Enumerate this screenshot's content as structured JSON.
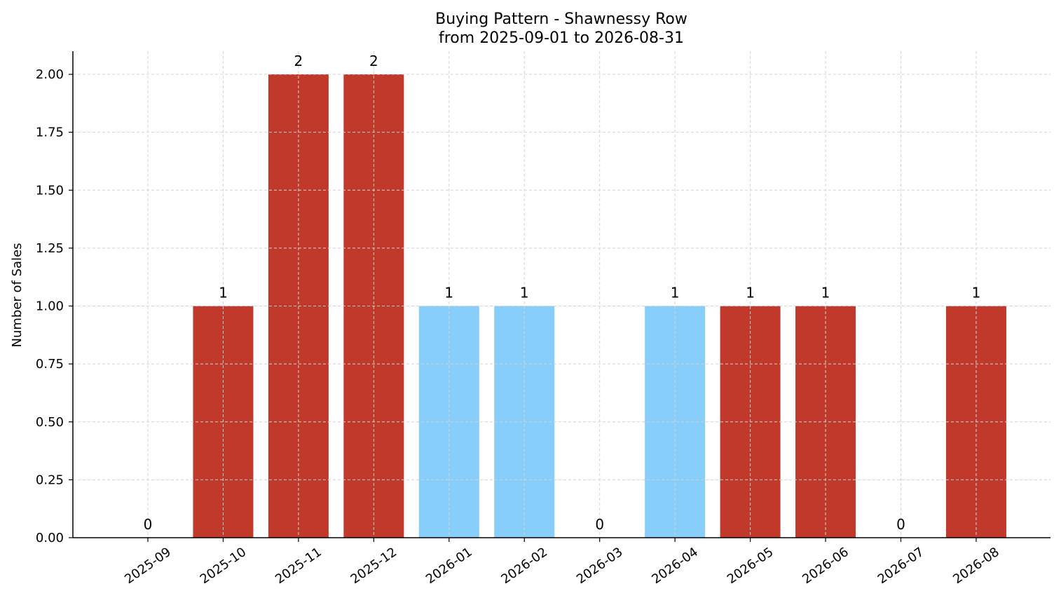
{
  "chart_data": {
    "type": "bar",
    "title": "Buying Pattern - Shawnessy Row",
    "subtitle": "from 2025-09-01 to 2026-08-31",
    "xlabel": "",
    "ylabel": "Number of Sales",
    "ylim": [
      0,
      2.1
    ],
    "yticks": [
      "0.00",
      "0.25",
      "0.50",
      "0.75",
      "1.00",
      "1.25",
      "1.50",
      "1.75",
      "2.00"
    ],
    "grid": true,
    "categories": [
      "2025-09",
      "2025-10",
      "2025-11",
      "2025-12",
      "2026-01",
      "2026-02",
      "2026-03",
      "2026-04",
      "2026-05",
      "2026-06",
      "2026-07",
      "2026-08"
    ],
    "values": [
      0,
      1,
      2,
      2,
      1,
      1,
      0,
      1,
      1,
      1,
      0,
      1
    ],
    "data_labels": [
      "0",
      "1",
      "2",
      "2",
      "1",
      "1",
      "0",
      "1",
      "1",
      "1",
      "0",
      "1"
    ],
    "bar_colors": [
      "#c0392b",
      "#c0392b",
      "#c0392b",
      "#c0392b",
      "#87cefa",
      "#87cefa",
      "#c0392b",
      "#87cefa",
      "#c0392b",
      "#c0392b",
      "#c0392b",
      "#c0392b"
    ]
  }
}
